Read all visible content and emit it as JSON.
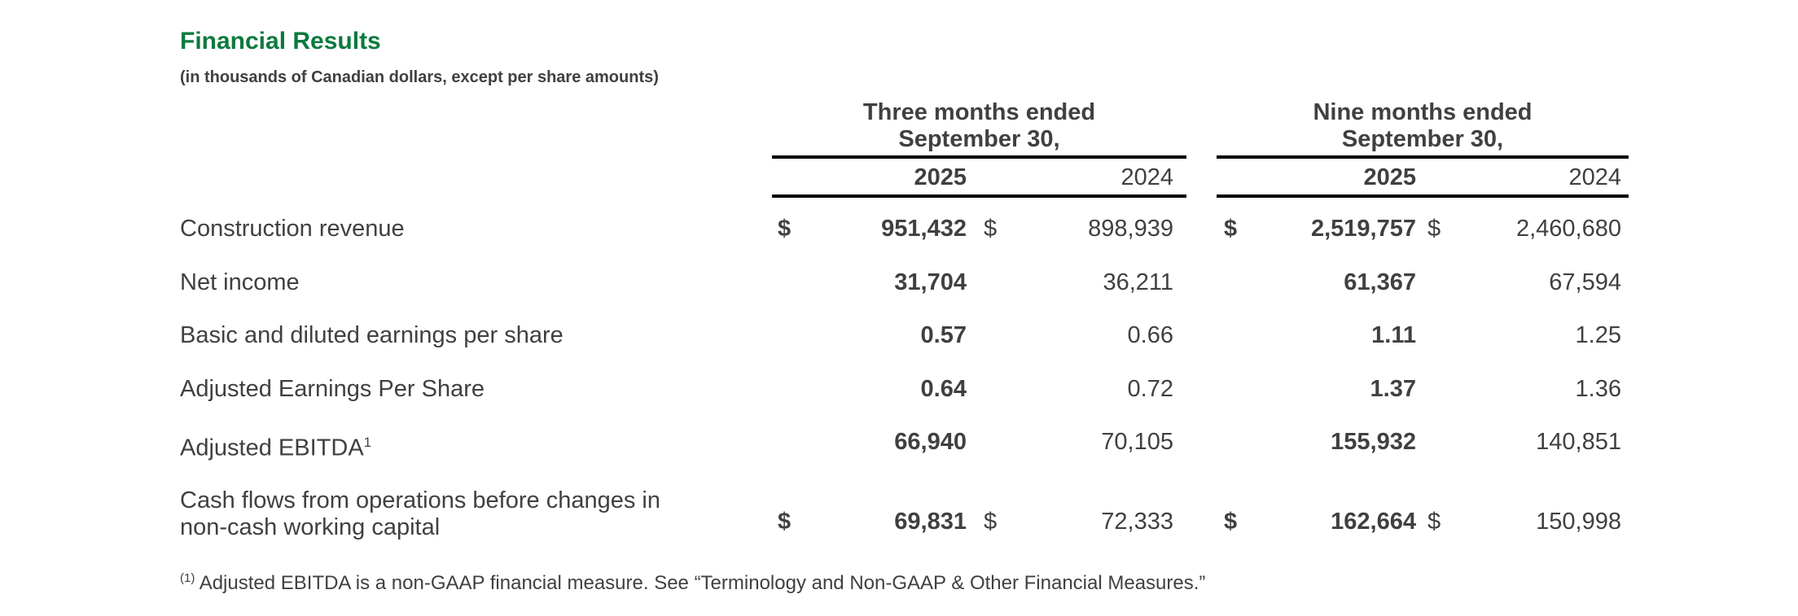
{
  "title": "Financial Results",
  "subtitle": "(in thousands of Canadian dollars, except per share amounts)",
  "groups": [
    {
      "line1": "Three months ended",
      "line2": "September 30,",
      "years": [
        "2025",
        "2024"
      ]
    },
    {
      "line1": "Nine months ended",
      "line2": "September 30,",
      "years": [
        "2025",
        "2024"
      ]
    }
  ],
  "rows": [
    {
      "label": "Construction revenue",
      "values": [
        "951,432",
        "898,939",
        "2,519,757",
        "2,460,680"
      ],
      "dollar": "$"
    },
    {
      "label": "Net income",
      "values": [
        "31,704",
        "36,211",
        "61,367",
        "67,594"
      ]
    },
    {
      "label": "Basic and diluted earnings per share",
      "values": [
        "0.57",
        "0.66",
        "1.11",
        "1.25"
      ]
    },
    {
      "label": "Adjusted Earnings Per Share",
      "values": [
        "0.64",
        "0.72",
        "1.37",
        "1.36"
      ]
    },
    {
      "label": "Adjusted EBITDA",
      "sup": "1",
      "values": [
        "66,940",
        "70,105",
        "155,932",
        "140,851"
      ]
    },
    {
      "label_line1": "Cash flows from operations before changes in",
      "label_line2": "non-cash working capital",
      "values": [
        "69,831",
        "72,333",
        "162,664",
        "150,998"
      ],
      "dollar": "$"
    }
  ],
  "footnote": {
    "marker": "(1)",
    "text": " Adjusted EBITDA is a non-GAAP financial measure. See “Terminology and Non-GAAP & Other Financial Measures.”"
  }
}
